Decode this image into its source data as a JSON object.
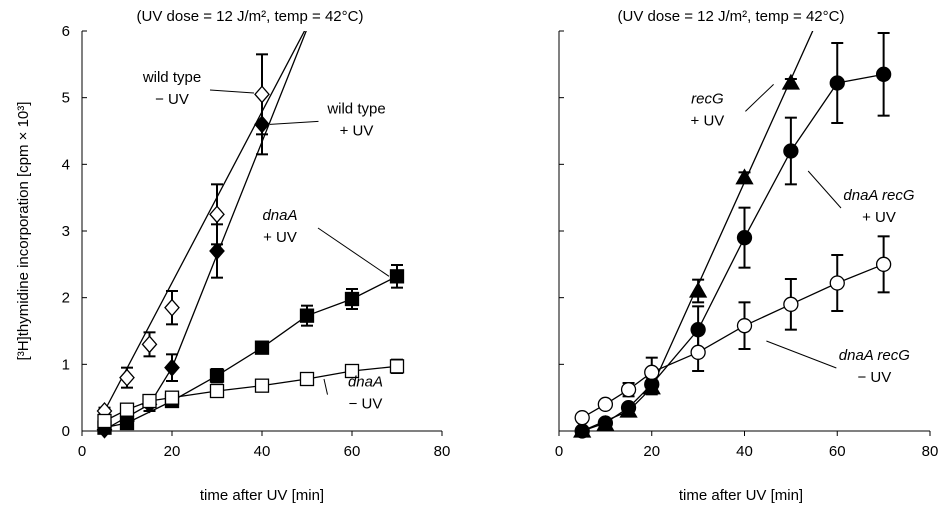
{
  "chart_data": [
    {
      "type": "line",
      "panel": "left",
      "title": "(UV dose = 12 J/m², temp = 42°C)",
      "xlabel": "time after UV [min]",
      "ylabel": "[³H]thymidine incorporation [cpm × 10³]",
      "xlim": [
        0,
        80
      ],
      "ylim": [
        0,
        6
      ],
      "xticks": [
        "0",
        "20",
        "40",
        "60",
        "80"
      ],
      "yticks": [
        "0",
        "1",
        "2",
        "3",
        "4",
        "5",
        "6"
      ],
      "grid": false,
      "series": [
        {
          "name": "wild type − UV",
          "marker": "diamond",
          "fill": "open",
          "x": [
            5,
            10,
            15,
            20,
            30,
            40
          ],
          "y": [
            0.3,
            0.8,
            1.3,
            1.85,
            3.25,
            5.05
          ],
          "err": [
            0.05,
            0.15,
            0.18,
            0.25,
            0.45,
            0.6
          ],
          "line": {
            "x": [
              5,
              51
            ],
            "y": [
              0.3,
              6.2
            ]
          }
        },
        {
          "name": "wild type + UV",
          "marker": "diamond",
          "fill": "filled",
          "x": [
            5,
            10,
            15,
            20,
            30,
            40
          ],
          "y": [
            0.02,
            0.15,
            0.4,
            0.95,
            2.7,
            4.6
          ],
          "err": [
            0.0,
            0.05,
            0.1,
            0.2,
            0.4,
            0.45
          ],
          "line": {
            "x": [
              5,
              15,
              20,
              51
            ],
            "y": [
              0.02,
              0.4,
              0.95,
              6.2
            ]
          }
        },
        {
          "name": "dnaA + UV",
          "marker": "square",
          "fill": "filled",
          "x": [
            5,
            10,
            20,
            30,
            40,
            50,
            60,
            70
          ],
          "y": [
            0.05,
            0.12,
            0.45,
            0.83,
            1.25,
            1.73,
            1.98,
            2.32
          ],
          "err": [
            0.0,
            0.0,
            0.08,
            0.1,
            0.08,
            0.15,
            0.15,
            0.17
          ]
        },
        {
          "name": "dnaA − UV",
          "marker": "square",
          "fill": "open",
          "x": [
            5,
            10,
            15,
            20,
            30,
            40,
            50,
            60,
            70
          ],
          "y": [
            0.15,
            0.32,
            0.45,
            0.5,
            0.6,
            0.68,
            0.78,
            0.9,
            0.97
          ],
          "err": [
            0.0,
            0.0,
            0.05,
            0.05,
            0.05,
            0.05,
            0.05,
            0.05,
            0.1
          ]
        }
      ],
      "annotations": [
        {
          "lines": [
            "wild type",
            "− UV"
          ],
          "italic": false,
          "x": 20,
          "y": 5.07,
          "target": [
            40,
            5.07
          ]
        },
        {
          "lines": [
            "wild type",
            "+ UV"
          ],
          "italic": false,
          "x": 61,
          "y": 4.6,
          "target": [
            40,
            4.6
          ]
        },
        {
          "lines": [
            "dnaA",
            "+ UV"
          ],
          "italic": true,
          "x": 44,
          "y": 3.0,
          "target": [
            70,
            2.32
          ]
        },
        {
          "lines": [
            "dnaA",
            "− UV"
          ],
          "italic": true,
          "x": 63,
          "y": 0.5,
          "target": [
            52,
            0.78
          ]
        }
      ],
      "extra_text": {
        "top_tick": "6"
      }
    },
    {
      "type": "line",
      "panel": "right",
      "title": "(UV dose = 12 J/m², temp = 42°C)",
      "xlabel": "time after UV [min]",
      "ylabel": "",
      "xlim": [
        0,
        80
      ],
      "ylim": [
        0,
        6
      ],
      "xticks": [
        "0",
        "20",
        "40",
        "60",
        "80"
      ],
      "yticks": [],
      "grid": false,
      "series": [
        {
          "name": "recG + UV",
          "marker": "triangle",
          "fill": "filled",
          "x": [
            5,
            10,
            15,
            20,
            30,
            40,
            50
          ],
          "y": [
            0.0,
            0.1,
            0.3,
            0.65,
            2.1,
            3.8,
            5.22
          ],
          "err": [
            0.0,
            0.0,
            0.05,
            0.1,
            0.17,
            0.08,
            0.06
          ],
          "line": {
            "x": [
              5,
              15,
              20,
              56
            ],
            "y": [
              0.0,
              0.3,
              0.65,
              6.2
            ]
          }
        },
        {
          "name": "dnaA recG + UV",
          "marker": "circle",
          "fill": "filled",
          "x": [
            5,
            10,
            15,
            20,
            30,
            40,
            50,
            60,
            70
          ],
          "y": [
            0.0,
            0.12,
            0.35,
            0.7,
            1.52,
            2.9,
            4.2,
            5.22,
            5.35
          ],
          "err": [
            0.0,
            0.0,
            0.05,
            0.1,
            0.35,
            0.45,
            0.5,
            0.6,
            0.62
          ]
        },
        {
          "name": "dnaA recG − UV",
          "marker": "circle",
          "fill": "open",
          "x": [
            5,
            10,
            15,
            20,
            30,
            40,
            50,
            60,
            70
          ],
          "y": [
            0.2,
            0.4,
            0.62,
            0.88,
            1.18,
            1.58,
            1.9,
            2.22,
            2.5
          ],
          "err": [
            0.0,
            0.05,
            0.1,
            0.22,
            0.28,
            0.35,
            0.38,
            0.42,
            0.42
          ]
        }
      ],
      "annotations": [
        {
          "lines": [
            "recG",
            "+ UV"
          ],
          "italic": true,
          "x": 32,
          "y": 4.75,
          "target": [
            48,
            5.2
          ]
        },
        {
          "lines": [
            "dnaA recG",
            "+ UV"
          ],
          "italic": true,
          "x": 69,
          "y": 3.3,
          "target": [
            52,
            3.9
          ]
        },
        {
          "lines": [
            "dnaA recG",
            "− UV"
          ],
          "italic": true,
          "x": 68,
          "y": 0.9,
          "target": [
            43,
            1.35
          ]
        }
      ]
    }
  ]
}
